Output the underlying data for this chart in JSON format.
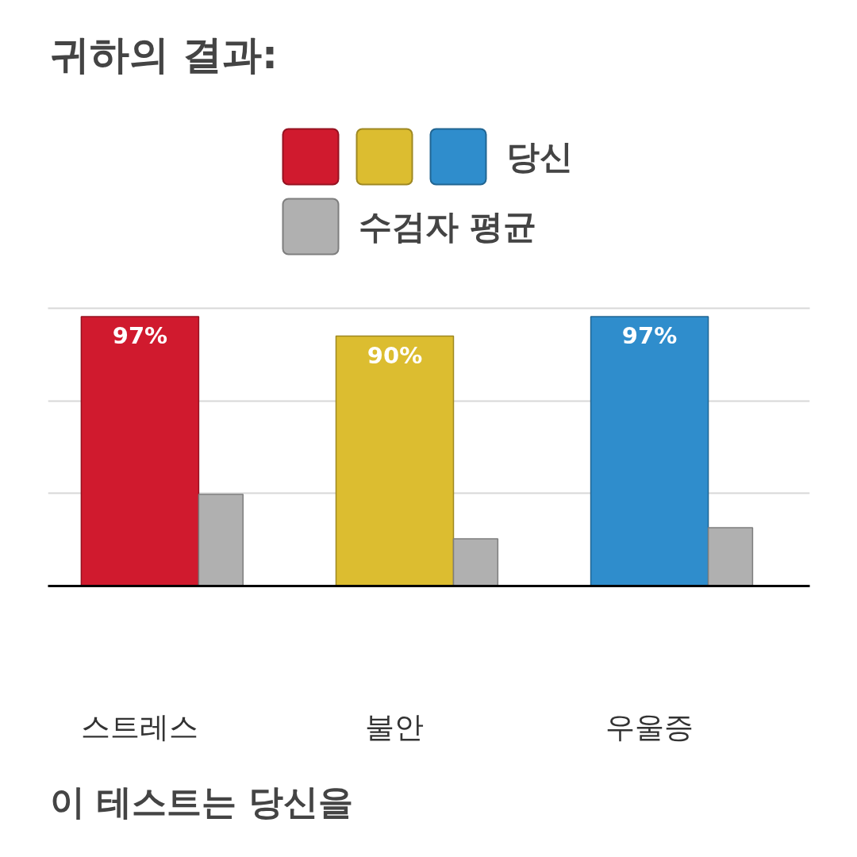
{
  "chart_data": {
    "type": "bar",
    "title": "귀하의 결과:",
    "categories": [
      "스트레스",
      "불안",
      "우울증"
    ],
    "series": [
      {
        "name": "당신",
        "colors": [
          "#d01a2e",
          "#dcbd30",
          "#2f8dcc"
        ],
        "values": [
          97,
          90,
          97
        ],
        "value_labels": [
          "97%",
          "90%",
          "97%"
        ]
      },
      {
        "name": "수검자 평균",
        "color": "#b0b0b0",
        "values": [
          33,
          17,
          21
        ]
      }
    ],
    "ylim": [
      0,
      100
    ],
    "yticks": [
      {
        "value": 0,
        "label": null
      },
      {
        "value": 33.3,
        "label": null
      },
      {
        "value": 66.7,
        "label": null
      },
      {
        "value": 100,
        "label": null
      }
    ],
    "grid": "y",
    "legend": "top",
    "tick_labels": "x",
    "annotations": [
      "이 테스트는 당신을"
    ]
  }
}
